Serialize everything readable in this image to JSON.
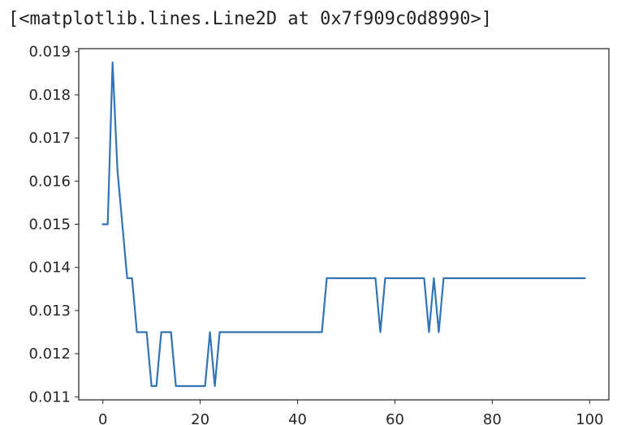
{
  "output_repr": "[<matplotlib.lines.Line2D at 0x7f909c0d8990>]",
  "colors": {
    "line": "#3274b4",
    "axes": "#262626",
    "text": "#262626",
    "background": "#ffffff"
  },
  "chart_data": {
    "type": "line",
    "grid": false,
    "legend": null,
    "xlim": [
      -4.95,
      103.95
    ],
    "ylim": [
      0.01093,
      0.01907
    ],
    "xticks": [
      0,
      20,
      40,
      60,
      80,
      100
    ],
    "xtick_labels": [
      "0",
      "20",
      "40",
      "60",
      "80",
      "100"
    ],
    "yticks": [
      0.011,
      0.012,
      0.013,
      0.014,
      0.015,
      0.016,
      0.017,
      0.018,
      0.019
    ],
    "ytick_labels": [
      "0.011",
      "0.012",
      "0.013",
      "0.014",
      "0.015",
      "0.016",
      "0.017",
      "0.018",
      "0.019"
    ],
    "series": [
      {
        "x": [
          0,
          1,
          2,
          3,
          4,
          5,
          6,
          7,
          8,
          9,
          10,
          11,
          12,
          13,
          14,
          15,
          16,
          17,
          18,
          19,
          20,
          21,
          22,
          23,
          24,
          25,
          26,
          27,
          28,
          29,
          30,
          31,
          32,
          33,
          34,
          35,
          36,
          37,
          38,
          39,
          40,
          41,
          42,
          43,
          44,
          45,
          46,
          47,
          48,
          49,
          50,
          51,
          52,
          53,
          54,
          55,
          56,
          57,
          58,
          59,
          60,
          61,
          62,
          63,
          64,
          65,
          66,
          67,
          68,
          69,
          70,
          71,
          72,
          73,
          74,
          75,
          76,
          77,
          78,
          79,
          80,
          81,
          82,
          83,
          84,
          85,
          86,
          87,
          88,
          89,
          90,
          91,
          92,
          93,
          94,
          95,
          96,
          97,
          98,
          99
        ],
        "values": [
          0.015,
          0.015,
          0.01875,
          0.01625,
          0.015,
          0.01375,
          0.01375,
          0.0125,
          0.0125,
          0.0125,
          0.01125,
          0.01125,
          0.0125,
          0.0125,
          0.0125,
          0.01125,
          0.01125,
          0.01125,
          0.01125,
          0.01125,
          0.01125,
          0.01125,
          0.0125,
          0.01125,
          0.0125,
          0.0125,
          0.0125,
          0.0125,
          0.0125,
          0.0125,
          0.0125,
          0.0125,
          0.0125,
          0.0125,
          0.0125,
          0.0125,
          0.0125,
          0.0125,
          0.0125,
          0.0125,
          0.0125,
          0.0125,
          0.0125,
          0.0125,
          0.0125,
          0.0125,
          0.01375,
          0.01375,
          0.01375,
          0.01375,
          0.01375,
          0.01375,
          0.01375,
          0.01375,
          0.01375,
          0.01375,
          0.01375,
          0.0125,
          0.01375,
          0.01375,
          0.01375,
          0.01375,
          0.01375,
          0.01375,
          0.01375,
          0.01375,
          0.01375,
          0.0125,
          0.01375,
          0.0125,
          0.01375,
          0.01375,
          0.01375,
          0.01375,
          0.01375,
          0.01375,
          0.01375,
          0.01375,
          0.01375,
          0.01375,
          0.01375,
          0.01375,
          0.01375,
          0.01375,
          0.01375,
          0.01375,
          0.01375,
          0.01375,
          0.01375,
          0.01375,
          0.01375,
          0.01375,
          0.01375,
          0.01375,
          0.01375,
          0.01375,
          0.01375,
          0.01375,
          0.01375,
          0.01375
        ]
      }
    ]
  }
}
